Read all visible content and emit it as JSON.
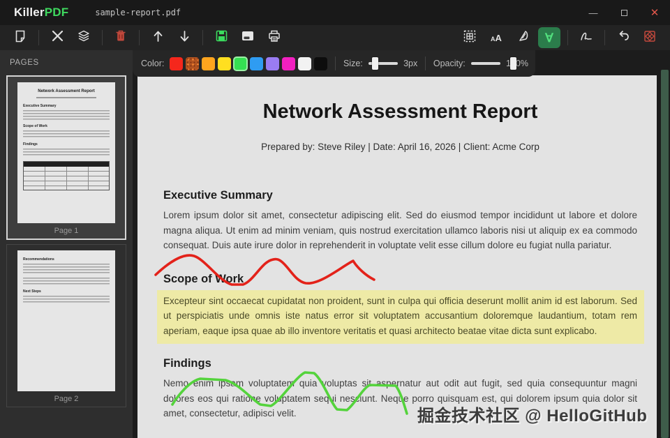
{
  "window": {
    "app_name_part1": "Killer",
    "app_name_part2": "PDF",
    "filename": "sample-report.pdf",
    "minimize_glyph": "—",
    "close_glyph": "✕"
  },
  "toolbar": {
    "text_tool_glyph_large": "A",
    "text_tool_glyph_small": "A",
    "draw_tool_glyph": "∀",
    "active_tool": "draw",
    "active_tool_bg": "#2b7c4b"
  },
  "annotation_bar": {
    "color_label": "Color:",
    "size_label": "Size:",
    "size_value": "3px",
    "opacity_label": "Opacity:",
    "opacity_value": "100%",
    "swatches": [
      {
        "name": "red",
        "hex": "#f5271c",
        "selected": false,
        "textured": false
      },
      {
        "name": "copper-textured",
        "hex": "#b25320",
        "selected": false,
        "textured": true
      },
      {
        "name": "orange",
        "hex": "#ffa51e",
        "selected": false,
        "textured": false
      },
      {
        "name": "yellow",
        "hex": "#ffdf20",
        "selected": false,
        "textured": false
      },
      {
        "name": "green",
        "hex": "#35e052",
        "selected": true,
        "textured": false
      },
      {
        "name": "blue",
        "hex": "#2f9cf2",
        "selected": false,
        "textured": false
      },
      {
        "name": "purple",
        "hex": "#9a7cf2",
        "selected": false,
        "textured": false
      },
      {
        "name": "magenta",
        "hex": "#f220c0",
        "selected": false,
        "textured": false
      },
      {
        "name": "white",
        "hex": "#f2f2f2",
        "selected": false,
        "textured": false
      },
      {
        "name": "black",
        "hex": "#0d0d0d",
        "selected": false,
        "textured": false
      }
    ]
  },
  "sidebar": {
    "title": "PAGES",
    "pages": [
      {
        "label": "Page 1",
        "selected": true
      },
      {
        "label": "Page 2",
        "selected": false
      }
    ]
  },
  "document": {
    "title": "Network Assessment Report",
    "byline": "Prepared by: Steve Riley  |  Date: April 16, 2026  |  Client: Acme Corp",
    "sections": [
      {
        "heading": "Executive Summary",
        "text": "Lorem ipsum dolor sit amet, consectetur adipiscing elit. Sed do eiusmod tempor incididunt ut labore et dolore magna aliqua. Ut enim ad minim veniam, quis nostrud exercitation ullamco laboris nisi ut aliquip ex ea commodo consequat. Duis aute irure dolor in reprehenderit in voluptate velit esse cillum dolore eu fugiat nulla pariatur."
      },
      {
        "heading": "Scope of Work",
        "text": "Excepteur sint occaecat cupidatat non proident, sunt in culpa qui officia deserunt mollit anim id est laborum. Sed ut perspiciatis unde omnis iste natus error sit voluptatem accusantium doloremque laudantium, totam rem aperiam, eaque ipsa quae ab illo inventore veritatis et quasi architecto beatae vitae dicta sunt explicabo.",
        "highlighted": true
      },
      {
        "heading": "Findings",
        "text": "Nemo enim ipsam voluptatem quia voluptas sit aspernatur aut odit aut fugit, sed quia consequuntur magni dolores eos qui ratione voluptatem sequi nesciunt. Neque porro quisquam est, qui dolorem ipsum quia dolor sit amet, consectetur, adipisci velit."
      }
    ],
    "page2_headings": [
      "Recommendations",
      "Next Steps"
    ]
  },
  "annotations": {
    "pen_red": "#e3221a",
    "pen_green": "#54d33c",
    "highlight_yellow": "#eeeaa6"
  },
  "watermark": "掘金技术社区 @ HelloGitHub"
}
